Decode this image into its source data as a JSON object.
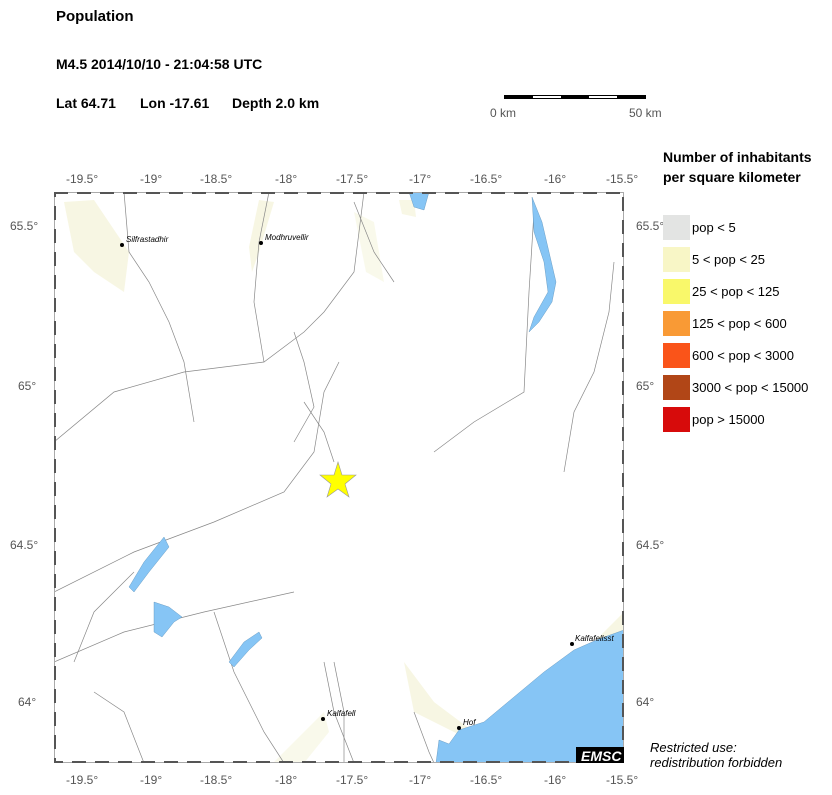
{
  "header": {
    "title": "Population",
    "event": "M4.5  2014/10/10 - 21:04:58 UTC",
    "lat": "Lat 64.71",
    "lon": "Lon -17.61",
    "depth": "Depth  2.0 km"
  },
  "scale_bar": {
    "start_label": "0 km",
    "end_label": "50 km"
  },
  "map": {
    "lon_ticks": [
      "-19.5°",
      "-19°",
      "-18.5°",
      "-18°",
      "-17.5°",
      "-17°",
      "-16.5°",
      "-16°",
      "-15.5°"
    ],
    "lat_ticks": [
      "65.5°",
      "65°",
      "64.5°",
      "64°"
    ],
    "cities": [
      "Silfrastadhir",
      "Modhruvellir",
      "Kalfafell",
      "Hof",
      "Kalfafellsst"
    ],
    "epicenter_icon": "star-icon",
    "colors": {
      "water": "#86c5f5",
      "epicenter": "#ffff00",
      "roads": "#888888"
    },
    "logo": "EMSC"
  },
  "legend": {
    "title_line1": "Number of inhabitants",
    "title_line2": "per square kilometer",
    "items": [
      {
        "label": "pop < 5",
        "color": "#e3e4e3"
      },
      {
        "label": "5 < pop < 25",
        "color": "#f8f6c6"
      },
      {
        "label": "25 < pop < 125",
        "color": "#f9f86a"
      },
      {
        "label": "125 < pop < 600",
        "color": "#f99a35"
      },
      {
        "label": "600 < pop < 3000",
        "color": "#fa5419"
      },
      {
        "label": "3000 < pop < 15000",
        "color": "#b14617"
      },
      {
        "label": "pop > 15000",
        "color": "#d70b0b"
      }
    ]
  },
  "footer": {
    "line1": "Restricted use:",
    "line2": "redistribution forbidden"
  }
}
